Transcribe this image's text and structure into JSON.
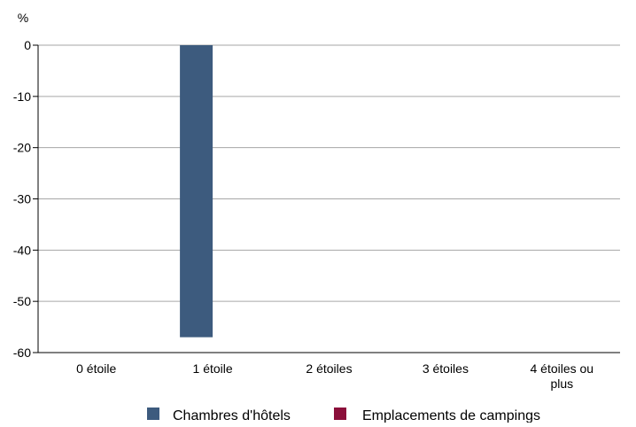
{
  "chart_data": {
    "type": "bar",
    "title": "",
    "ylabel": "%",
    "xlabel": "",
    "ylim": [
      -60,
      0
    ],
    "yticks": [
      0,
      -10,
      -20,
      -30,
      -40,
      -50,
      -60
    ],
    "grid": true,
    "legend_position": "bottom",
    "categories": [
      "0 étoile",
      "1 étoile",
      "2 étoiles",
      "3 étoiles",
      "4 étoiles ou plus"
    ],
    "series": [
      {
        "name": "Chambres d'hôtels",
        "color": "#3d5b7e",
        "values": [
          null,
          -57,
          null,
          null,
          null
        ]
      },
      {
        "name": "Emplacements de campings",
        "color": "#8b0f3a",
        "values": [
          null,
          null,
          null,
          null,
          null
        ]
      }
    ]
  }
}
